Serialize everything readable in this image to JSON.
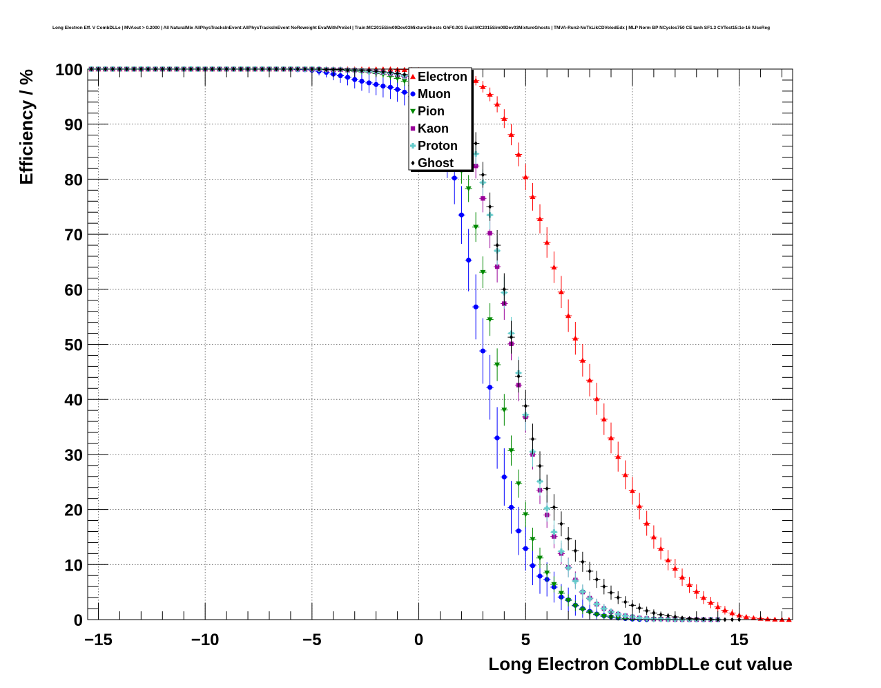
{
  "chart_data": {
    "type": "scatter",
    "title": "Long Electron Eff. V CombDLLe | MVAout > 0.2000 | All NaturalMix AllPhysTracksInEvent:AllPhysTracksInEvent NoReweight EvalWithPreSel | Train:MC2015Sim09Dev03MixtureGhosts GhF0.001 Eval:MC2015Sim09Dev03MixtureGhosts | TMVA-Run2-NoTkLikCDVelodEdx | MLP Norm BP NCycles750 CE tanh SF1.3 CVTest15:1e-16 !UseReg",
    "xlabel": "Long Electron CombDLLe cut value",
    "ylabel": "Efficiency / %",
    "xlim": [
      -15.5,
      17.5
    ],
    "ylim": [
      0,
      100
    ],
    "xticks": [
      -15,
      -10,
      -5,
      0,
      5,
      10,
      15
    ],
    "xtick_labels": [
      "−15",
      "−10",
      "−5",
      "0",
      "5",
      "10",
      "15"
    ],
    "yticks": [
      0,
      10,
      20,
      30,
      40,
      50,
      60,
      70,
      80,
      90,
      100
    ],
    "ytick_labels": [
      "0",
      "10",
      "20",
      "30",
      "40",
      "50",
      "60",
      "70",
      "80",
      "90",
      "100"
    ],
    "grid": true,
    "legend_position": "top-center",
    "series": [
      {
        "name": "Electron",
        "color": "#ff0000",
        "marker": "triangle-up",
        "x": [
          -15.33,
          -15.0,
          -14.67,
          -14.33,
          -14.0,
          -13.67,
          -13.33,
          -13.0,
          -12.67,
          -12.33,
          -12.0,
          -11.67,
          -11.33,
          -11.0,
          -10.67,
          -10.33,
          -10.0,
          -9.67,
          -9.33,
          -9.0,
          -8.67,
          -8.33,
          -8.0,
          -7.67,
          -7.33,
          -7.0,
          -6.67,
          -6.33,
          -6.0,
          -5.67,
          -5.33,
          -5.0,
          -4.67,
          -4.33,
          -4.0,
          -3.67,
          -3.33,
          -3.0,
          -2.67,
          -2.33,
          -2.0,
          -1.67,
          -1.33,
          -1.0,
          -0.67,
          -0.33,
          0.0,
          0.33,
          0.67,
          1.0,
          1.33,
          1.67,
          2.0,
          2.33,
          2.67,
          3.0,
          3.33,
          3.67,
          4.0,
          4.33,
          4.67,
          5.0,
          5.33,
          5.67,
          6.0,
          6.33,
          6.67,
          7.0,
          7.33,
          7.67,
          8.0,
          8.33,
          8.67,
          9.0,
          9.33,
          9.67,
          10.0,
          10.33,
          10.67,
          11.0,
          11.33,
          11.67,
          12.0,
          12.33,
          12.67,
          13.0,
          13.33,
          13.67,
          14.0,
          14.33,
          14.67,
          15.0,
          15.33,
          15.67,
          16.0,
          16.33,
          16.67,
          17.0,
          17.33
        ],
        "y": [
          100,
          100,
          100,
          100,
          100,
          100,
          100,
          100,
          100,
          100,
          100,
          100,
          100,
          100,
          100,
          100,
          100,
          100,
          100,
          100,
          100,
          100,
          100,
          100,
          100,
          100,
          100,
          100,
          100,
          100,
          100,
          100,
          100,
          100,
          100,
          100,
          100,
          100,
          100,
          100,
          100,
          100,
          100,
          99.9,
          99.9,
          99.9,
          99.9,
          99.8,
          99.8,
          99.7,
          99.6,
          99.4,
          99.1,
          98.6,
          97.9,
          96.8,
          95.4,
          93.6,
          91.0,
          88.1,
          84.5,
          80.4,
          76.8,
          72.8,
          68.5,
          64.0,
          59.5,
          55.2,
          51.1,
          47.1,
          43.5,
          40.1,
          36.4,
          33.0,
          29.6,
          26.3,
          23.4,
          20.6,
          17.5,
          15.0,
          12.9,
          10.8,
          9.3,
          7.7,
          6.3,
          5.1,
          4.0,
          3.1,
          2.3,
          1.7,
          1.2,
          0.8,
          0.5,
          0.3,
          0.2,
          0.1,
          0.05,
          0.02,
          0.0
        ]
      },
      {
        "name": "Muon",
        "color": "#0000ff",
        "marker": "circle",
        "x": [
          -15.33,
          -15.0,
          -14.67,
          -14.33,
          -14.0,
          -13.67,
          -13.33,
          -13.0,
          -12.67,
          -12.33,
          -12.0,
          -11.67,
          -11.33,
          -11.0,
          -10.67,
          -10.33,
          -10.0,
          -9.67,
          -9.33,
          -9.0,
          -8.67,
          -8.33,
          -8.0,
          -7.67,
          -7.33,
          -7.0,
          -6.67,
          -6.33,
          -6.0,
          -5.67,
          -5.33,
          -5.0,
          -4.67,
          -4.33,
          -4.0,
          -3.67,
          -3.33,
          -3.0,
          -2.67,
          -2.33,
          -2.0,
          -1.67,
          -1.33,
          -1.0,
          -0.67,
          -0.33,
          0.0,
          0.33,
          0.67,
          1.0,
          1.33,
          1.67,
          2.0,
          2.33,
          2.67,
          3.0,
          3.33,
          3.67,
          4.0,
          4.33,
          4.67,
          5.0,
          5.33,
          5.67,
          6.0,
          6.33,
          6.67,
          7.0,
          7.33,
          7.67,
          8.0,
          8.33,
          8.67,
          9.0,
          9.33,
          9.67,
          10.0,
          10.33,
          10.67
        ],
        "y": [
          100,
          100,
          100,
          100,
          100,
          100,
          100,
          100,
          100,
          100,
          100,
          100,
          100,
          100,
          100,
          100,
          100,
          100,
          100,
          100,
          100,
          100,
          100,
          100,
          100,
          100,
          100,
          100,
          100,
          99.9,
          99.9,
          99.8,
          99.6,
          99.4,
          99.1,
          98.8,
          98.5,
          98.1,
          97.8,
          97.5,
          97.2,
          96.9,
          96.7,
          96.3,
          95.8,
          95.0,
          94.0,
          92.5,
          90.5,
          88.0,
          84.5,
          80.2,
          73.5,
          65.3,
          56.8,
          48.8,
          42.2,
          33.0,
          25.9,
          20.4,
          16.1,
          12.9,
          9.8,
          7.9,
          7.3,
          5.9,
          4.1,
          3.6,
          2.6,
          2.0,
          1.5,
          1.0,
          0.7,
          0.5,
          0.3,
          0.2,
          0.1,
          0.05,
          0.0
        ]
      },
      {
        "name": "Pion",
        "color": "#008800",
        "marker": "triangle-down",
        "x": [
          -15.33,
          -15.0,
          -14.67,
          -14.33,
          -14.0,
          -13.67,
          -13.33,
          -13.0,
          -12.67,
          -12.33,
          -12.0,
          -11.67,
          -11.33,
          -11.0,
          -10.67,
          -10.33,
          -10.0,
          -9.67,
          -9.33,
          -9.0,
          -8.67,
          -8.33,
          -8.0,
          -7.67,
          -7.33,
          -7.0,
          -6.67,
          -6.33,
          -6.0,
          -5.67,
          -5.33,
          -5.0,
          -4.67,
          -4.33,
          -4.0,
          -3.67,
          -3.33,
          -3.0,
          -2.67,
          -2.33,
          -2.0,
          -1.67,
          -1.33,
          -1.0,
          -0.67,
          -0.33,
          0.0,
          0.33,
          0.67,
          1.0,
          1.33,
          1.67,
          2.0,
          2.33,
          2.67,
          3.0,
          3.33,
          3.67,
          4.0,
          4.33,
          4.67,
          5.0,
          5.33,
          5.67,
          6.0,
          6.33,
          6.67,
          7.0,
          7.33,
          7.67,
          8.0,
          8.33,
          8.67,
          9.0,
          9.33,
          9.67,
          10.0,
          10.33,
          10.67,
          11.0,
          11.33
        ],
        "y": [
          100,
          100,
          100,
          100,
          100,
          100,
          100,
          100,
          100,
          100,
          100,
          100,
          100,
          100,
          100,
          100,
          100,
          100,
          100,
          100,
          100,
          100,
          100,
          100,
          100,
          100,
          100,
          100,
          100,
          100,
          100,
          100,
          99.9,
          99.9,
          99.8,
          99.8,
          99.7,
          99.6,
          99.5,
          99.4,
          99.2,
          99.0,
          98.7,
          98.3,
          97.8,
          97.0,
          96.0,
          94.7,
          93.0,
          90.8,
          88.0,
          85.0,
          81.5,
          78.3,
          71.3,
          63.1,
          54.5,
          46.3,
          38.1,
          30.7,
          24.7,
          19.1,
          14.6,
          11.2,
          8.5,
          6.4,
          4.8,
          3.5,
          2.5,
          1.8,
          1.3,
          0.9,
          0.6,
          0.4,
          0.3,
          0.2,
          0.1,
          0.05,
          0.02,
          0.0,
          0.0
        ]
      },
      {
        "name": "Kaon",
        "color": "#990099",
        "marker": "square",
        "x": [
          -15.33,
          -15.0,
          -14.67,
          -14.33,
          -14.0,
          -13.67,
          -13.33,
          -13.0,
          -12.67,
          -12.33,
          -12.0,
          -11.67,
          -11.33,
          -11.0,
          -10.67,
          -10.33,
          -10.0,
          -9.67,
          -9.33,
          -9.0,
          -8.67,
          -8.33,
          -8.0,
          -7.67,
          -7.33,
          -7.0,
          -6.67,
          -6.33,
          -6.0,
          -5.67,
          -5.33,
          -5.0,
          -4.67,
          -4.33,
          -4.0,
          -3.67,
          -3.33,
          -3.0,
          -2.67,
          -2.33,
          -2.0,
          -1.67,
          -1.33,
          -1.0,
          -0.67,
          -0.33,
          0.0,
          0.33,
          0.67,
          1.0,
          1.33,
          1.67,
          2.0,
          2.33,
          2.67,
          3.0,
          3.33,
          3.67,
          4.0,
          4.33,
          4.67,
          5.0,
          5.33,
          5.67,
          6.0,
          6.33,
          6.67,
          7.0,
          7.33,
          7.67,
          8.0,
          8.33,
          8.67,
          9.0,
          9.33,
          9.67,
          10.0,
          10.33,
          10.67,
          11.0,
          11.33,
          11.67,
          12.0,
          12.33,
          12.67,
          13.0,
          13.33,
          13.67,
          14.0
        ],
        "y": [
          100,
          100,
          100,
          100,
          100,
          100,
          100,
          100,
          100,
          100,
          100,
          100,
          100,
          100,
          100,
          100,
          100,
          100,
          100,
          100,
          100,
          100,
          100,
          100,
          100,
          100,
          100,
          100,
          100,
          100,
          100,
          100,
          100,
          99.9,
          99.9,
          99.9,
          99.8,
          99.8,
          99.7,
          99.6,
          99.5,
          99.4,
          99.2,
          99.0,
          98.7,
          98.3,
          97.7,
          96.9,
          95.8,
          94.3,
          92.4,
          90.1,
          87.5,
          84.8,
          82.4,
          76.5,
          70.2,
          64.1,
          57.4,
          50.1,
          42.6,
          36.8,
          30.0,
          23.5,
          19.0,
          15.1,
          12.0,
          9.5,
          7.2,
          5.0,
          3.9,
          2.8,
          2.0,
          1.4,
          1.0,
          0.7,
          0.5,
          0.3,
          0.2,
          0.1,
          0.1,
          0.05,
          0.02,
          0.0,
          0.0,
          0.0,
          0.0,
          0.0,
          0.0
        ]
      },
      {
        "name": "Proton",
        "color": "#66cccc",
        "marker": "cross",
        "x": [
          -15.33,
          -15.0,
          -14.67,
          -14.33,
          -14.0,
          -13.67,
          -13.33,
          -13.0,
          -12.67,
          -12.33,
          -12.0,
          -11.67,
          -11.33,
          -11.0,
          -10.67,
          -10.33,
          -10.0,
          -9.67,
          -9.33,
          -9.0,
          -8.67,
          -8.33,
          -8.0,
          -7.67,
          -7.33,
          -7.0,
          -6.67,
          -6.33,
          -6.0,
          -5.67,
          -5.33,
          -5.0,
          -4.67,
          -4.33,
          -4.0,
          -3.67,
          -3.33,
          -3.0,
          -2.67,
          -2.33,
          -2.0,
          -1.67,
          -1.33,
          -1.0,
          -0.67,
          -0.33,
          0.0,
          0.33,
          0.67,
          1.0,
          1.33,
          1.67,
          2.0,
          2.33,
          2.67,
          3.0,
          3.33,
          3.67,
          4.0,
          4.33,
          4.67,
          5.0,
          5.33,
          5.67,
          6.0,
          6.33,
          6.67,
          7.0,
          7.33,
          7.67,
          8.0,
          8.33,
          8.67,
          9.0,
          9.33,
          9.67,
          10.0,
          10.33,
          10.67,
          11.0,
          11.33,
          11.67,
          12.0,
          12.33,
          12.67,
          13.0,
          13.33,
          13.67,
          14.0
        ],
        "y": [
          100,
          100,
          100,
          100,
          100,
          100,
          100,
          100,
          100,
          100,
          100,
          100,
          100,
          100,
          100,
          100,
          100,
          100,
          100,
          100,
          100,
          100,
          100,
          100,
          100,
          100,
          100,
          100,
          100,
          100,
          100,
          100,
          100,
          99.9,
          99.9,
          99.9,
          99.8,
          99.8,
          99.7,
          99.6,
          99.5,
          99.4,
          99.3,
          99.1,
          98.8,
          98.4,
          97.9,
          97.2,
          96.3,
          95.1,
          93.6,
          91.8,
          89.5,
          87.2,
          84.6,
          79.4,
          73.5,
          67.0,
          59.4,
          52.0,
          44.8,
          37.2,
          30.5,
          25.1,
          20.2,
          15.9,
          12.4,
          9.4,
          7.0,
          5.1,
          3.8,
          2.8,
          2.0,
          1.4,
          1.0,
          0.7,
          0.5,
          0.3,
          0.2,
          0.1,
          0.1,
          0.05,
          0.02,
          0.0,
          0.0,
          0.0,
          0.0,
          0.0,
          0.0
        ]
      },
      {
        "name": "Ghost",
        "color": "#000000",
        "marker": "diamond",
        "x": [
          -15.33,
          -15.0,
          -14.67,
          -14.33,
          -14.0,
          -13.67,
          -13.33,
          -13.0,
          -12.67,
          -12.33,
          -12.0,
          -11.67,
          -11.33,
          -11.0,
          -10.67,
          -10.33,
          -10.0,
          -9.67,
          -9.33,
          -9.0,
          -8.67,
          -8.33,
          -8.0,
          -7.67,
          -7.33,
          -7.0,
          -6.67,
          -6.33,
          -6.0,
          -5.67,
          -5.33,
          -5.0,
          -4.67,
          -4.33,
          -4.0,
          -3.67,
          -3.33,
          -3.0,
          -2.67,
          -2.33,
          -2.0,
          -1.67,
          -1.33,
          -1.0,
          -0.67,
          -0.33,
          0.0,
          0.33,
          0.67,
          1.0,
          1.33,
          1.67,
          2.0,
          2.33,
          2.67,
          3.0,
          3.33,
          3.67,
          4.0,
          4.33,
          4.67,
          5.0,
          5.33,
          5.67,
          6.0,
          6.33,
          6.67,
          7.0,
          7.33,
          7.67,
          8.0,
          8.33,
          8.67,
          9.0,
          9.33,
          9.67,
          10.0,
          10.33,
          10.67,
          11.0,
          11.33,
          11.67,
          12.0,
          12.33,
          12.67,
          13.0,
          13.33,
          13.67,
          14.0,
          14.33,
          14.67,
          15.0
        ],
        "y": [
          100,
          100,
          100,
          100,
          100,
          100,
          100,
          100,
          100,
          100,
          100,
          100,
          100,
          100,
          100,
          100,
          100,
          100,
          100,
          100,
          100,
          100,
          100,
          100,
          100,
          100,
          100,
          100,
          100,
          100,
          100,
          100,
          100,
          99.9,
          99.9,
          99.9,
          99.8,
          99.8,
          99.7,
          99.7,
          99.6,
          99.5,
          99.4,
          99.2,
          99.0,
          98.7,
          98.3,
          97.8,
          97.2,
          96.4,
          95.4,
          94.2,
          92.6,
          90.0,
          86.5,
          80.8,
          75.0,
          68.0,
          60.0,
          51.3,
          44.2,
          38.8,
          32.8,
          27.9,
          23.8,
          20.4,
          17.4,
          14.7,
          12.5,
          10.5,
          8.8,
          7.3,
          6.0,
          4.9,
          4.0,
          3.2,
          2.6,
          2.1,
          1.6,
          1.2,
          0.9,
          0.7,
          0.5,
          0.3,
          0.2,
          0.15,
          0.1,
          0.05,
          0.02,
          0.0,
          0.0,
          0.0
        ]
      }
    ]
  }
}
